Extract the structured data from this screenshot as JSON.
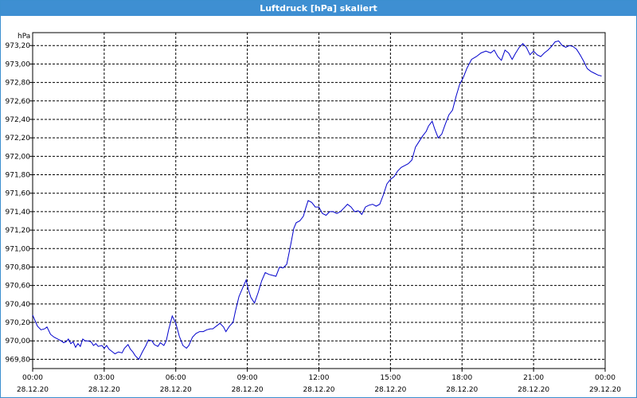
{
  "window": {
    "title": "Luftdruck [hPa] skaliert"
  },
  "chart_data": {
    "type": "line",
    "title": "Luftdruck [hPa] skaliert",
    "ylabel": "hPa",
    "xlabel": "",
    "ylim": [
      969.7,
      973.34
    ],
    "xlim": [
      0,
      24
    ],
    "grid": true,
    "y_ticks": [
      "969,80",
      "970,00",
      "970,20",
      "970,40",
      "970,60",
      "970,80",
      "971,00",
      "971,20",
      "971,40",
      "971,60",
      "971,80",
      "972,00",
      "972,20",
      "972,40",
      "972,60",
      "972,80",
      "973,00",
      "973,20"
    ],
    "x_ticks": [
      {
        "time": "00:00",
        "date": "28.12.20"
      },
      {
        "time": "03:00",
        "date": "28.12.20"
      },
      {
        "time": "06:00",
        "date": "28.12.20"
      },
      {
        "time": "09:00",
        "date": "28.12.20"
      },
      {
        "time": "12:00",
        "date": "28.12.20"
      },
      {
        "time": "15:00",
        "date": "28.12.20"
      },
      {
        "time": "18:00",
        "date": "28.12.20"
      },
      {
        "time": "21:00",
        "date": "28.12.20"
      },
      {
        "time": "00:00",
        "date": "29.12.20"
      }
    ],
    "series": [
      {
        "color": "#0000cc",
        "points": [
          [
            0.0,
            970.28
          ],
          [
            0.2,
            970.16
          ],
          [
            0.35,
            970.12
          ],
          [
            0.5,
            970.13
          ],
          [
            0.6,
            970.15
          ],
          [
            0.75,
            970.07
          ],
          [
            0.9,
            970.04
          ],
          [
            1.05,
            970.02
          ],
          [
            1.2,
            970.0
          ],
          [
            1.3,
            969.98
          ],
          [
            1.4,
            969.99
          ],
          [
            1.5,
            970.02
          ],
          [
            1.6,
            969.97
          ],
          [
            1.7,
            969.99
          ],
          [
            1.8,
            969.93
          ],
          [
            1.9,
            969.97
          ],
          [
            2.0,
            969.94
          ],
          [
            2.1,
            970.02
          ],
          [
            2.2,
            970.0
          ],
          [
            2.3,
            970.0
          ],
          [
            2.45,
            969.99
          ],
          [
            2.55,
            969.95
          ],
          [
            2.65,
            969.97
          ],
          [
            2.75,
            969.94
          ],
          [
            2.9,
            969.95
          ],
          [
            3.0,
            969.92
          ],
          [
            3.1,
            969.95
          ],
          [
            3.2,
            969.91
          ],
          [
            3.35,
            969.88
          ],
          [
            3.45,
            969.86
          ],
          [
            3.6,
            969.88
          ],
          [
            3.75,
            969.87
          ],
          [
            3.85,
            969.92
          ],
          [
            4.0,
            969.96
          ],
          [
            4.1,
            969.91
          ],
          [
            4.2,
            969.88
          ],
          [
            4.3,
            969.84
          ],
          [
            4.45,
            969.8
          ],
          [
            4.6,
            969.88
          ],
          [
            4.75,
            969.95
          ],
          [
            4.85,
            970.01
          ],
          [
            5.0,
            970.0
          ],
          [
            5.1,
            969.96
          ],
          [
            5.25,
            969.94
          ],
          [
            5.35,
            969.98
          ],
          [
            5.5,
            969.95
          ],
          [
            5.6,
            970.0
          ],
          [
            5.7,
            970.12
          ],
          [
            5.85,
            970.27
          ],
          [
            6.0,
            970.19
          ],
          [
            6.15,
            970.05
          ],
          [
            6.3,
            969.95
          ],
          [
            6.45,
            969.92
          ],
          [
            6.55,
            969.95
          ],
          [
            6.7,
            970.04
          ],
          [
            6.85,
            970.08
          ],
          [
            7.0,
            970.1
          ],
          [
            7.15,
            970.1
          ],
          [
            7.3,
            970.12
          ],
          [
            7.45,
            970.13
          ],
          [
            7.55,
            970.13
          ],
          [
            7.7,
            970.16
          ],
          [
            7.85,
            970.19
          ],
          [
            8.0,
            970.15
          ],
          [
            8.1,
            970.1
          ],
          [
            8.25,
            970.16
          ],
          [
            8.4,
            970.2
          ],
          [
            8.5,
            970.32
          ],
          [
            8.65,
            970.48
          ],
          [
            8.8,
            970.57
          ],
          [
            8.95,
            970.66
          ],
          [
            9.05,
            970.55
          ],
          [
            9.15,
            970.47
          ],
          [
            9.3,
            970.41
          ],
          [
            9.45,
            970.52
          ],
          [
            9.6,
            970.65
          ],
          [
            9.75,
            970.74
          ],
          [
            9.9,
            970.72
          ],
          [
            10.05,
            970.71
          ],
          [
            10.2,
            970.7
          ],
          [
            10.35,
            970.8
          ],
          [
            10.5,
            970.79
          ],
          [
            10.65,
            970.83
          ],
          [
            10.8,
            971.02
          ],
          [
            10.95,
            971.22
          ],
          [
            11.05,
            971.28
          ],
          [
            11.2,
            971.3
          ],
          [
            11.35,
            971.35
          ],
          [
            11.45,
            971.44
          ],
          [
            11.55,
            971.52
          ],
          [
            11.7,
            971.5
          ],
          [
            11.85,
            971.45
          ],
          [
            12.0,
            971.45
          ],
          [
            12.15,
            971.38
          ],
          [
            12.3,
            971.36
          ],
          [
            12.45,
            971.4
          ],
          [
            12.6,
            971.4
          ],
          [
            12.75,
            971.38
          ],
          [
            12.9,
            971.4
          ],
          [
            13.05,
            971.44
          ],
          [
            13.2,
            971.48
          ],
          [
            13.35,
            971.45
          ],
          [
            13.5,
            971.4
          ],
          [
            13.65,
            971.41
          ],
          [
            13.8,
            971.37
          ],
          [
            13.95,
            971.45
          ],
          [
            14.1,
            971.47
          ],
          [
            14.25,
            971.48
          ],
          [
            14.4,
            971.46
          ],
          [
            14.55,
            971.48
          ],
          [
            14.7,
            971.58
          ],
          [
            14.85,
            971.7
          ],
          [
            15.0,
            971.75
          ],
          [
            15.15,
            971.78
          ],
          [
            15.3,
            971.84
          ],
          [
            15.45,
            971.88
          ],
          [
            15.6,
            971.9
          ],
          [
            15.75,
            971.92
          ],
          [
            15.9,
            971.96
          ],
          [
            16.05,
            972.1
          ],
          [
            16.2,
            972.16
          ],
          [
            16.35,
            972.22
          ],
          [
            16.5,
            972.27
          ],
          [
            16.6,
            972.33
          ],
          [
            16.75,
            972.38
          ],
          [
            16.85,
            972.3
          ],
          [
            17.0,
            972.2
          ],
          [
            17.15,
            972.24
          ],
          [
            17.3,
            972.35
          ],
          [
            17.45,
            972.45
          ],
          [
            17.6,
            972.5
          ],
          [
            17.75,
            972.65
          ],
          [
            17.9,
            972.78
          ],
          [
            18.05,
            972.85
          ],
          [
            18.2,
            972.95
          ],
          [
            18.4,
            973.05
          ],
          [
            18.6,
            973.08
          ],
          [
            18.8,
            973.12
          ],
          [
            19.0,
            973.14
          ],
          [
            19.2,
            973.12
          ],
          [
            19.35,
            973.15
          ],
          [
            19.5,
            973.08
          ],
          [
            19.65,
            973.04
          ],
          [
            19.8,
            973.15
          ],
          [
            19.95,
            973.12
          ],
          [
            20.1,
            973.05
          ],
          [
            20.25,
            973.12
          ],
          [
            20.4,
            973.18
          ],
          [
            20.55,
            973.22
          ],
          [
            20.7,
            973.18
          ],
          [
            20.85,
            973.1
          ],
          [
            21.0,
            973.14
          ],
          [
            21.15,
            973.1
          ],
          [
            21.3,
            973.08
          ],
          [
            21.45,
            973.12
          ],
          [
            21.6,
            973.15
          ],
          [
            21.75,
            973.19
          ],
          [
            21.9,
            973.24
          ],
          [
            22.05,
            973.25
          ],
          [
            22.2,
            973.2
          ],
          [
            22.35,
            973.18
          ],
          [
            22.5,
            973.2
          ],
          [
            22.65,
            973.19
          ],
          [
            22.8,
            973.16
          ],
          [
            22.95,
            973.1
          ],
          [
            23.1,
            973.03
          ],
          [
            23.25,
            972.95
          ],
          [
            23.4,
            972.92
          ],
          [
            23.55,
            972.9
          ],
          [
            23.7,
            972.88
          ],
          [
            23.85,
            972.87
          ]
        ]
      }
    ]
  }
}
